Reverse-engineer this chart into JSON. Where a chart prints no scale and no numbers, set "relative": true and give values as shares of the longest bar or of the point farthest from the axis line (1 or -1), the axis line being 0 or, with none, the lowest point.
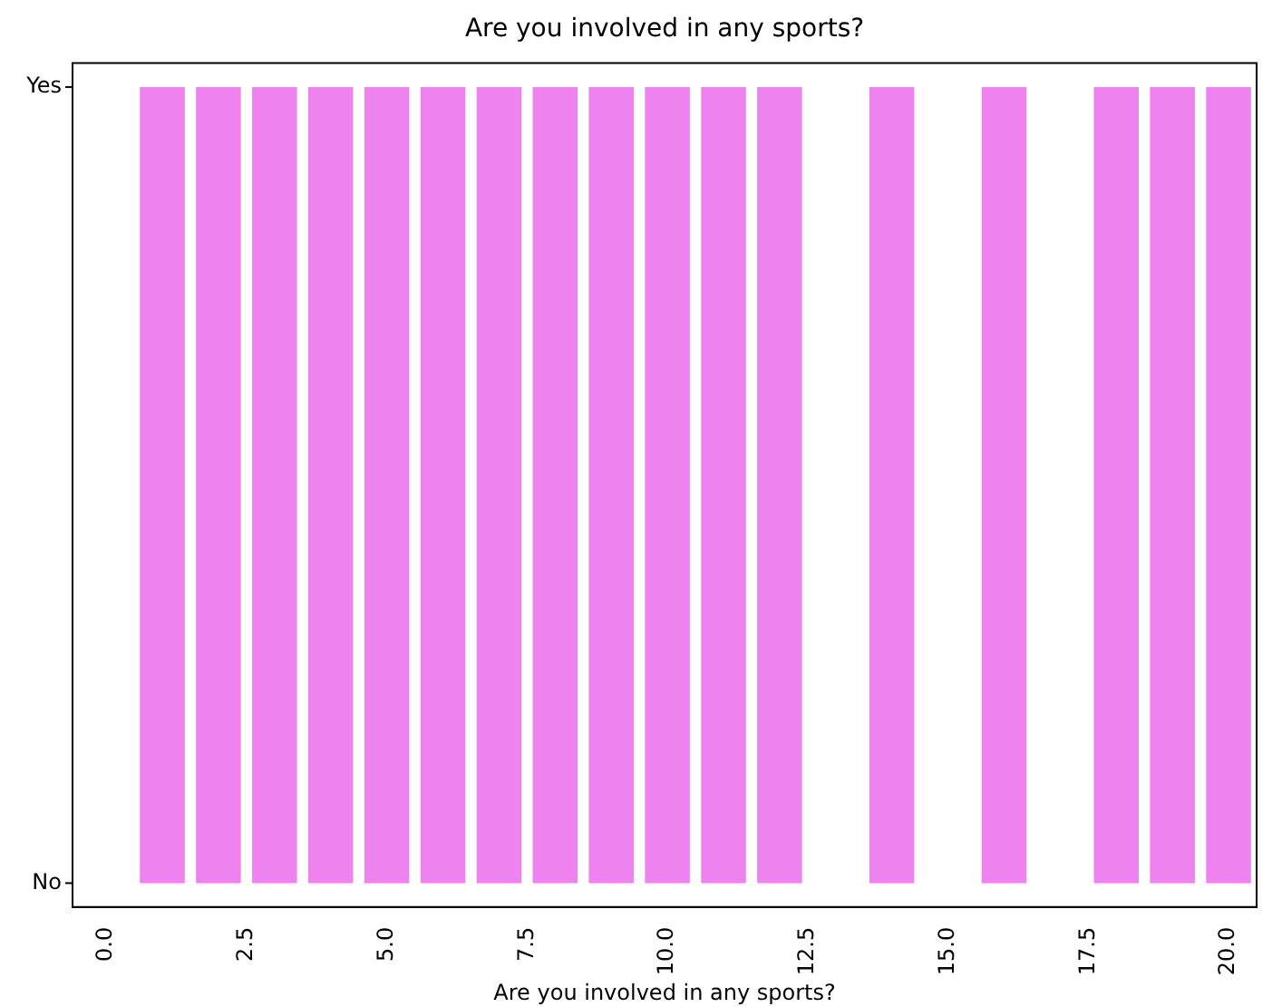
{
  "chart_data": {
    "type": "bar",
    "title": "Are you involved in any sports?",
    "xlabel": "Are you involved in any sports?",
    "x": [
      1,
      2,
      3,
      4,
      5,
      6,
      7,
      8,
      9,
      10,
      11,
      12,
      13,
      14,
      15,
      16,
      17,
      18,
      19,
      20
    ],
    "values": [
      1,
      1,
      1,
      1,
      1,
      1,
      1,
      1,
      1,
      1,
      1,
      1,
      0,
      1,
      0,
      1,
      0,
      1,
      1,
      1
    ],
    "color": "#ee82ee",
    "xlim": [
      -0.6,
      20.5
    ],
    "xticks": [
      {
        "value": 0,
        "label": "0.0"
      },
      2.5,
      {
        "value": 5,
        "label": "5.0"
      },
      7.5,
      {
        "value": 10,
        "label": "10.0"
      },
      12.5,
      {
        "value": 15,
        "label": "15.0"
      },
      17.5,
      {
        "value": 20,
        "label": "20.0"
      }
    ],
    "relative": true,
    "annotations": [
      "No",
      "Yes"
    ],
    "grid": false,
    "legend": false
  }
}
